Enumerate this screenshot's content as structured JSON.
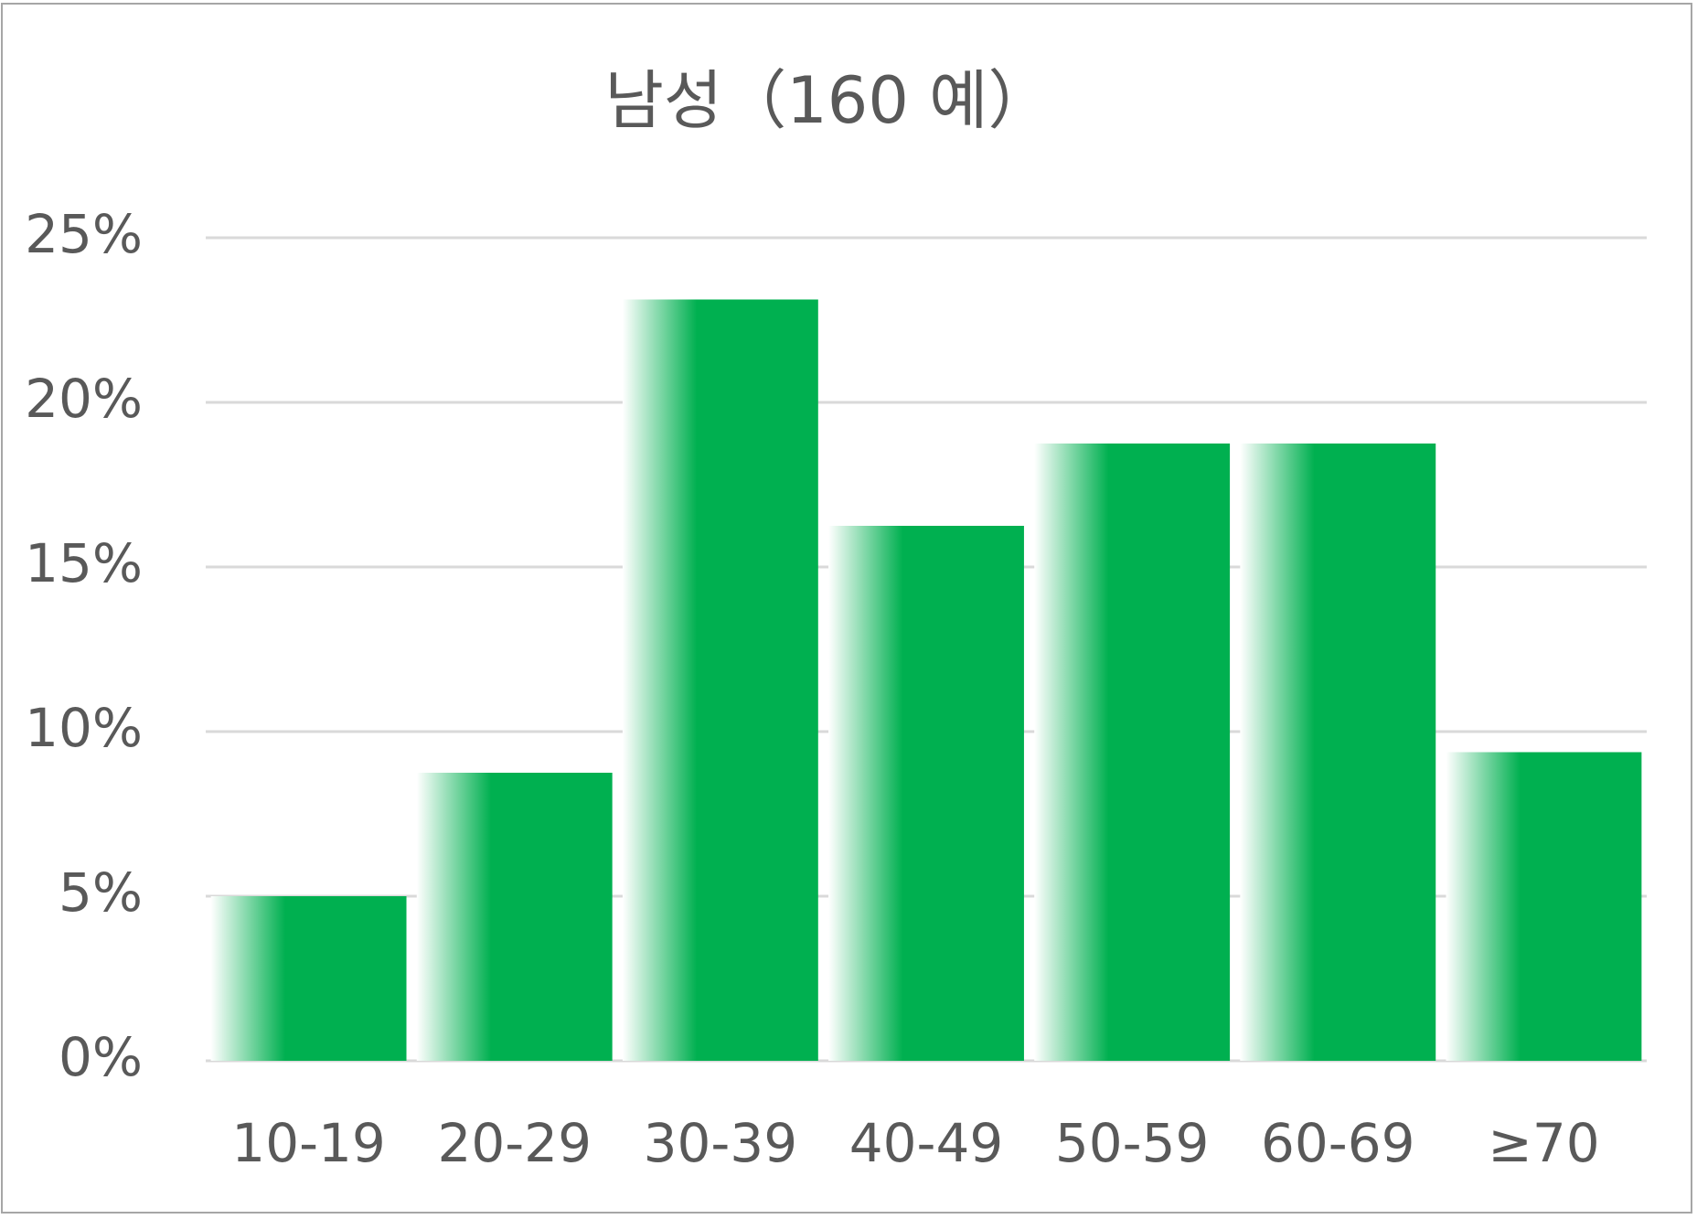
{
  "chart_data": {
    "type": "bar",
    "title": "남성（160 예）",
    "categories": [
      "10-19",
      "20-29",
      "30-39",
      "40-49",
      "50-59",
      "60-69",
      "≥70"
    ],
    "values": [
      5,
      8.75,
      23.125,
      16.25,
      18.75,
      18.75,
      9.375
    ],
    "color": "#00b050",
    "ylim": [
      0,
      25
    ],
    "yticks": [
      {
        "value": 0,
        "label": "0%"
      },
      {
        "value": 5,
        "label": "5%"
      },
      {
        "value": 10,
        "label": "10%"
      },
      {
        "value": 15,
        "label": "15%"
      },
      {
        "value": 20,
        "label": "20%"
      },
      {
        "value": 25,
        "label": "25%"
      }
    ],
    "grid": true
  }
}
